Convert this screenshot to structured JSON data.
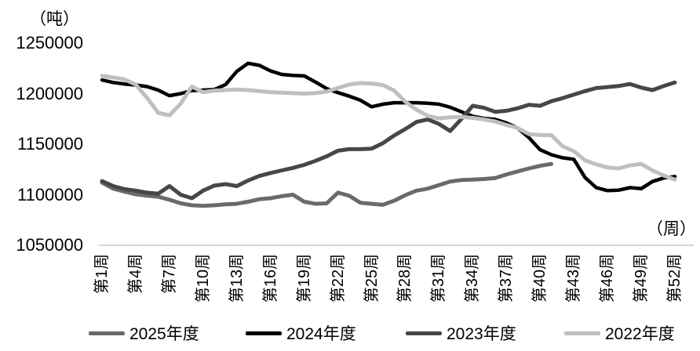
{
  "chart_data": {
    "type": "line",
    "unit_label_y": "（吨）",
    "unit_label_x": "（周）",
    "grid": false,
    "legend_position": "bottom",
    "ylim": [
      1050000,
      1250000
    ],
    "y_ticks": [
      1250000,
      1200000,
      1150000,
      1100000,
      1050000
    ],
    "weeks_total": 52,
    "x_tick_weeks": [
      1,
      4,
      7,
      10,
      13,
      16,
      19,
      22,
      25,
      28,
      31,
      34,
      37,
      40,
      43,
      46,
      49,
      52
    ],
    "x_tick_labels": [
      "第1周",
      "第4周",
      "第7周",
      "第10周",
      "第13周",
      "第16周",
      "第19周",
      "第22周",
      "第25周",
      "第28周",
      "第31周",
      "第34周",
      "第37周",
      "第40周",
      "第43周",
      "第46周",
      "第49周",
      "第52周"
    ],
    "axis_line_color": "#c8c8c8",
    "series": [
      {
        "name": "2025年度",
        "color": "#6a6a6a",
        "stroke_width": 5,
        "start_week": 1,
        "values": [
          1112000,
          1106000,
          1103000,
          1100500,
          1099000,
          1098000,
          1095000,
          1091500,
          1089500,
          1089000,
          1089500,
          1090500,
          1091000,
          1093000,
          1095500,
          1096500,
          1098500,
          1100000,
          1093000,
          1091000,
          1091500,
          1102000,
          1099000,
          1092000,
          1091000,
          1090000,
          1094000,
          1099500,
          1104000,
          1106000,
          1109500,
          1113000,
          1114500,
          1115000,
          1115500,
          1116500,
          1120000,
          1123000,
          1126000,
          1128500,
          1130500
        ]
      },
      {
        "name": "2024年度",
        "color": "#000000",
        "stroke_width": 4.5,
        "start_week": 1,
        "values": [
          1213500,
          1211000,
          1209500,
          1208500,
          1207000,
          1203500,
          1198000,
          1200000,
          1203000,
          1203500,
          1204000,
          1209000,
          1222000,
          1230000,
          1228000,
          1222500,
          1219000,
          1218000,
          1217500,
          1211500,
          1205000,
          1201000,
          1197500,
          1193500,
          1187000,
          1189500,
          1191000,
          1191000,
          1191000,
          1190500,
          1189500,
          1186500,
          1182000,
          1177500,
          1175500,
          1174500,
          1171000,
          1166000,
          1156500,
          1144500,
          1139500,
          1136500,
          1135000,
          1117000,
          1107000,
          1104000,
          1104500,
          1107000,
          1106000,
          1113000,
          1116500,
          1118000
        ]
      },
      {
        "name": "2023年度",
        "color": "#474747",
        "stroke_width": 5,
        "start_week": 1,
        "values": [
          1113500,
          1108500,
          1105500,
          1104000,
          1102000,
          1101000,
          1108500,
          1100000,
          1096500,
          1104000,
          1109000,
          1110500,
          1108500,
          1114000,
          1118500,
          1121500,
          1124000,
          1126500,
          1129500,
          1133500,
          1138000,
          1143500,
          1145000,
          1145000,
          1145500,
          1151000,
          1158500,
          1165000,
          1172000,
          1174500,
          1170000,
          1163000,
          1175000,
          1188000,
          1186000,
          1182000,
          1183000,
          1185500,
          1189000,
          1188000,
          1192500,
          1195500,
          1199000,
          1202500,
          1205500,
          1206500,
          1207500,
          1209500,
          1206000,
          1203500,
          1207500,
          1211000
        ]
      },
      {
        "name": "2022年度",
        "color": "#bfbfbf",
        "stroke_width": 5,
        "start_week": 1,
        "values": [
          1217500,
          1216000,
          1214000,
          1209000,
          1196000,
          1181000,
          1178500,
          1190000,
          1207000,
          1201500,
          1203000,
          1203500,
          1204000,
          1203500,
          1202500,
          1201500,
          1201000,
          1200500,
          1200000,
          1200500,
          1202000,
          1205500,
          1209000,
          1210500,
          1210000,
          1208500,
          1203000,
          1192000,
          1184000,
          1178000,
          1175500,
          1176500,
          1177000,
          1176000,
          1174500,
          1172500,
          1169000,
          1166000,
          1160000,
          1159000,
          1159000,
          1148000,
          1143000,
          1134000,
          1130000,
          1127000,
          1126000,
          1129000,
          1130500,
          1124000,
          1119000,
          1115000
        ]
      }
    ]
  }
}
